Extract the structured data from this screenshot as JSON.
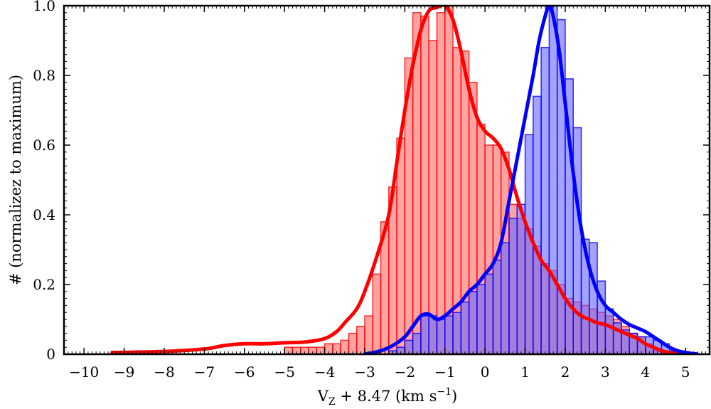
{
  "chart_data": {
    "type": "bar",
    "title": "",
    "xlabel_parts": {
      "main": "V",
      "sub": "Z",
      "rest": " + 8.47 (km s",
      "sup": "−1",
      "close": ")"
    },
    "ylabel": "# (normalizez to maximum)",
    "xlim": [
      -10.5,
      5.6
    ],
    "ylim": [
      0,
      1.0
    ],
    "x_ticks": [
      -10,
      -9,
      -8,
      -7,
      -6,
      -5,
      -4,
      -3,
      -2,
      -1,
      0,
      1,
      2,
      3,
      4,
      5
    ],
    "x_tick_labels": [
      "−10",
      "−9",
      "−8",
      "−7",
      "−6",
      "−5",
      "−4",
      "−3",
      "−2",
      "−1",
      "0",
      "1",
      "2",
      "3",
      "4",
      "5"
    ],
    "y_ticks": [
      0,
      0.2,
      0.4,
      0.6,
      0.8,
      1.0
    ],
    "y_tick_labels": [
      "0",
      "0.2",
      "0.4",
      "0.6",
      "0.8",
      "1.0"
    ],
    "grid": false,
    "series": [
      {
        "color": "#ff0000",
        "bar_fill": "#ff6666",
        "bins_x": [
          -5.0,
          -4.8,
          -4.6,
          -4.4,
          -4.2,
          -4.0,
          -3.8,
          -3.6,
          -3.4,
          -3.2,
          -3.0,
          -2.8,
          -2.6,
          -2.4,
          -2.2,
          -2.0,
          -1.8,
          -1.6,
          -1.4,
          -1.2,
          -1.0,
          -0.8,
          -0.6,
          -0.4,
          -0.2,
          0.0,
          0.2,
          0.4,
          0.6,
          0.8,
          1.0,
          1.2,
          1.4,
          1.6,
          1.8,
          2.0,
          2.2,
          2.4,
          2.6,
          2.8,
          3.0,
          3.2,
          3.4,
          3.6,
          3.8,
          4.0,
          4.2
        ],
        "bins_values": [
          0.02,
          0.02,
          0.02,
          0.02,
          0.02,
          0.03,
          0.03,
          0.04,
          0.06,
          0.08,
          0.11,
          0.23,
          0.38,
          0.48,
          0.62,
          0.85,
          0.98,
          0.97,
          0.9,
          0.98,
          1.0,
          0.88,
          0.87,
          0.78,
          0.66,
          0.6,
          0.6,
          0.58,
          0.43,
          0.39,
          0.36,
          0.31,
          0.26,
          0.24,
          0.2,
          0.16,
          0.15,
          0.14,
          0.13,
          0.12,
          0.11,
          0.1,
          0.08,
          0.06,
          0.05,
          0.03,
          0.01
        ],
        "curve_x": [
          -9.3,
          -8.0,
          -7.0,
          -6.5,
          -6.0,
          -5.5,
          -5.0,
          -4.5,
          -4.0,
          -3.7,
          -3.5,
          -3.2,
          -3.0,
          -2.7,
          -2.4,
          -2.2,
          -2.0,
          -1.8,
          -1.6,
          -1.4,
          -1.2,
          -1.0,
          -0.8,
          -0.6,
          -0.4,
          -0.2,
          0.0,
          0.2,
          0.4,
          0.6,
          0.8,
          1.0,
          1.2,
          1.4,
          1.6,
          1.8,
          2.0,
          2.2,
          2.4,
          2.6,
          2.8,
          3.0,
          3.2,
          3.4,
          3.6,
          3.8,
          4.0,
          4.2,
          4.4,
          4.6,
          4.8,
          5.0
        ],
        "curve_y": [
          0.005,
          0.008,
          0.015,
          0.025,
          0.03,
          0.03,
          0.033,
          0.035,
          0.045,
          0.065,
          0.09,
          0.13,
          0.18,
          0.28,
          0.4,
          0.55,
          0.7,
          0.83,
          0.93,
          0.985,
          0.995,
          1.0,
          0.96,
          0.87,
          0.76,
          0.68,
          0.64,
          0.62,
          0.59,
          0.53,
          0.45,
          0.38,
          0.32,
          0.27,
          0.24,
          0.2,
          0.16,
          0.13,
          0.11,
          0.1,
          0.09,
          0.085,
          0.075,
          0.065,
          0.055,
          0.045,
          0.03,
          0.02,
          0.01,
          0.005,
          0.002,
          0.0
        ]
      },
      {
        "color": "#0000ff",
        "bar_fill": "#6666ff",
        "bins_x": [
          -2.4,
          -2.2,
          -2.0,
          -1.8,
          -1.6,
          -1.4,
          -1.2,
          -1.0,
          -0.8,
          -0.6,
          -0.4,
          -0.2,
          0.0,
          0.2,
          0.4,
          0.6,
          0.8,
          1.0,
          1.2,
          1.4,
          1.6,
          1.8,
          2.0,
          2.2,
          2.4,
          2.6,
          2.8,
          3.0,
          3.2,
          3.4,
          3.6,
          3.8,
          4.0,
          4.2,
          4.4,
          4.6
        ],
        "bins_values": [
          0.01,
          0.02,
          0.04,
          0.06,
          0.11,
          0.11,
          0.1,
          0.11,
          0.12,
          0.15,
          0.18,
          0.2,
          0.23,
          0.27,
          0.32,
          0.39,
          0.43,
          0.63,
          0.74,
          0.88,
          1.0,
          0.96,
          0.79,
          0.65,
          0.33,
          0.32,
          0.21,
          0.13,
          0.09,
          0.07,
          0.06,
          0.05,
          0.05,
          0.04,
          0.03,
          0.01
        ],
        "curve_x": [
          -3.0,
          -2.6,
          -2.3,
          -2.0,
          -1.8,
          -1.6,
          -1.4,
          -1.2,
          -1.0,
          -0.8,
          -0.6,
          -0.4,
          -0.2,
          0.0,
          0.2,
          0.4,
          0.6,
          0.8,
          1.0,
          1.2,
          1.35,
          1.5,
          1.6,
          1.7,
          1.85,
          2.0,
          2.2,
          2.4,
          2.6,
          2.8,
          3.0,
          3.2,
          3.4,
          3.6,
          3.8,
          4.0,
          4.2,
          4.4,
          4.6,
          4.8,
          5.0,
          5.3
        ],
        "curve_y": [
          0.0,
          0.01,
          0.025,
          0.05,
          0.08,
          0.11,
          0.115,
          0.1,
          0.11,
          0.13,
          0.15,
          0.18,
          0.2,
          0.23,
          0.26,
          0.32,
          0.44,
          0.56,
          0.68,
          0.8,
          0.9,
          0.97,
          1.0,
          0.97,
          0.87,
          0.72,
          0.52,
          0.36,
          0.25,
          0.18,
          0.14,
          0.12,
          0.1,
          0.085,
          0.075,
          0.065,
          0.05,
          0.035,
          0.02,
          0.01,
          0.005,
          0.0
        ]
      }
    ]
  }
}
